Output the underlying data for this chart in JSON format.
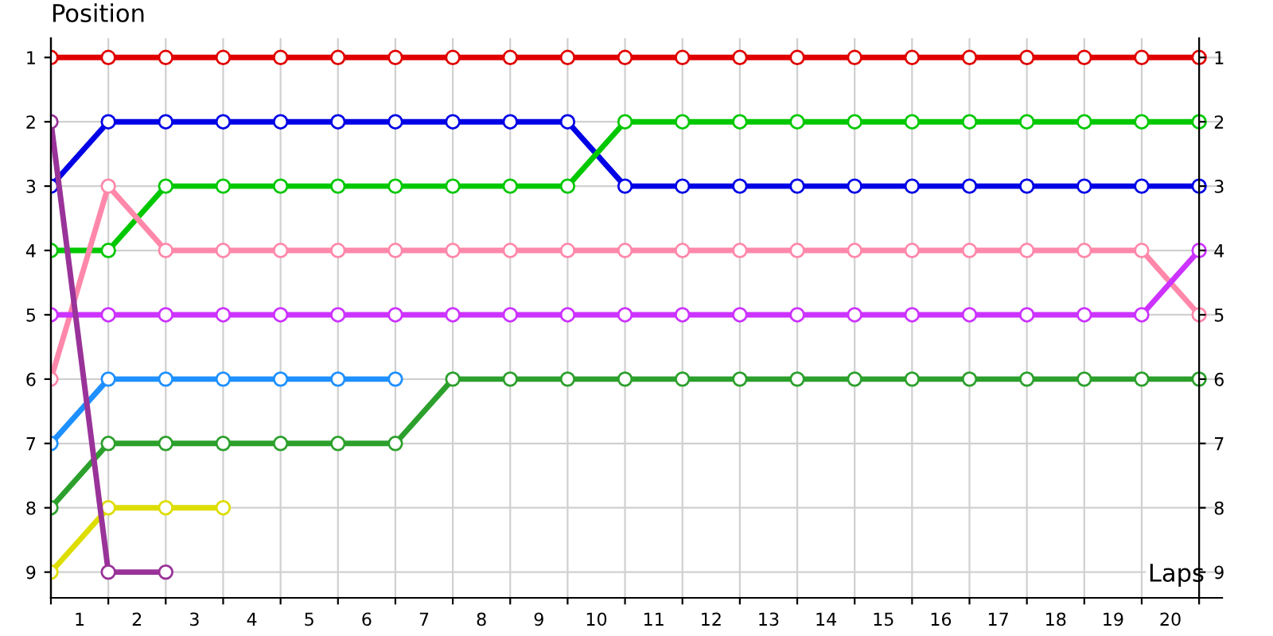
{
  "chart_data": {
    "type": "line",
    "ylabel": "Position",
    "xlabel": "Laps",
    "x": [
      0,
      1,
      2,
      3,
      4,
      5,
      6,
      7,
      8,
      9,
      10,
      11,
      12,
      13,
      14,
      15,
      16,
      17,
      18,
      19,
      20
    ],
    "series": [
      {
        "color": "#e00000",
        "values": [
          1,
          1,
          1,
          1,
          1,
          1,
          1,
          1,
          1,
          1,
          1,
          1,
          1,
          1,
          1,
          1,
          1,
          1,
          1,
          1,
          1
        ]
      },
      {
        "color": "#0000e6",
        "values": [
          3,
          2,
          2,
          2,
          2,
          2,
          2,
          2,
          2,
          2,
          3,
          3,
          3,
          3,
          3,
          3,
          3,
          3,
          3,
          3,
          3
        ]
      },
      {
        "color": "#00c800",
        "values": [
          4,
          4,
          3,
          3,
          3,
          3,
          3,
          3,
          3,
          3,
          2,
          2,
          2,
          2,
          2,
          2,
          2,
          2,
          2,
          2,
          2
        ]
      },
      {
        "color": "#ff88aa",
        "values": [
          6,
          3,
          4,
          4,
          4,
          4,
          4,
          4,
          4,
          4,
          4,
          4,
          4,
          4,
          4,
          4,
          4,
          4,
          4,
          4,
          5
        ]
      },
      {
        "color": "#cc33ff",
        "values": [
          5,
          5,
          5,
          5,
          5,
          5,
          5,
          5,
          5,
          5,
          5,
          5,
          5,
          5,
          5,
          5,
          5,
          5,
          5,
          5,
          4
        ]
      },
      {
        "color": "#1e90ff",
        "values": [
          7,
          6,
          6,
          6,
          6,
          6,
          6,
          null,
          null,
          null,
          null,
          null,
          null,
          null,
          null,
          null,
          null,
          null,
          null,
          null,
          null
        ]
      },
      {
        "color": "#2ca02c",
        "values": [
          8,
          7,
          7,
          7,
          7,
          7,
          7,
          6,
          6,
          6,
          6,
          6,
          6,
          6,
          6,
          6,
          6,
          6,
          6,
          6,
          6
        ]
      },
      {
        "color": "#dddd00",
        "values": [
          9,
          8,
          8,
          8,
          null,
          null,
          null,
          null,
          null,
          null,
          null,
          null,
          null,
          null,
          null,
          null,
          null,
          null,
          null,
          null,
          null
        ]
      },
      {
        "color": "#993399",
        "values": [
          2,
          9,
          9,
          null,
          null,
          null,
          null,
          null,
          null,
          null,
          null,
          null,
          null,
          null,
          null,
          null,
          null,
          null,
          null,
          null,
          null
        ]
      }
    ],
    "xlim": [
      0,
      20.4
    ],
    "ylim": [
      9.4,
      0.7
    ],
    "y2lim": [
      9.4,
      0.7
    ],
    "xticks": [
      {
        "value": 0,
        "label": null
      },
      {
        "value": 0.5,
        "label": "1"
      },
      {
        "value": 1,
        "label": null
      },
      {
        "value": 1.5,
        "label": "2"
      },
      {
        "value": 2,
        "label": null
      },
      {
        "value": 2.5,
        "label": "3"
      },
      {
        "value": 3,
        "label": null
      },
      {
        "value": 3.5,
        "label": "4"
      },
      {
        "value": 4,
        "label": null
      },
      {
        "value": 4.5,
        "label": "5"
      },
      {
        "value": 5,
        "label": null
      },
      {
        "value": 5.5,
        "label": "6"
      },
      {
        "value": 6,
        "label": null
      },
      {
        "value": 6.5,
        "label": "7"
      },
      {
        "value": 7,
        "label": null
      },
      {
        "value": 7.5,
        "label": "8"
      },
      {
        "value": 8,
        "label": null
      },
      {
        "value": 8.5,
        "label": "9"
      },
      {
        "value": 9,
        "label": null
      },
      {
        "value": 9.5,
        "label": "10"
      },
      {
        "value": 10,
        "label": null
      },
      {
        "value": 10.5,
        "label": "11"
      },
      {
        "value": 11,
        "label": null
      },
      {
        "value": 11.5,
        "label": "12"
      },
      {
        "value": 12,
        "label": null
      },
      {
        "value": 12.5,
        "label": "13"
      },
      {
        "value": 13,
        "label": null
      },
      {
        "value": 13.5,
        "label": "14"
      },
      {
        "value": 14,
        "label": null
      },
      {
        "value": 14.5,
        "label": "15"
      },
      {
        "value": 15,
        "label": null
      },
      {
        "value": 15.5,
        "label": "16"
      },
      {
        "value": 16,
        "label": null
      },
      {
        "value": 16.5,
        "label": "17"
      },
      {
        "value": 17,
        "label": null
      },
      {
        "value": 17.5,
        "label": "18"
      },
      {
        "value": 18,
        "label": null
      },
      {
        "value": 18.5,
        "label": "19"
      },
      {
        "value": 19,
        "label": null
      },
      {
        "value": 19.5,
        "label": "20"
      },
      {
        "value": 20,
        "label": null
      }
    ],
    "yticks": [
      1,
      2,
      3,
      4,
      5,
      6,
      7,
      8,
      9
    ],
    "y2ticks": [
      1,
      2,
      3,
      4,
      5,
      6,
      7,
      8,
      9
    ],
    "grid": true,
    "marker": "circle",
    "line_style": "solid",
    "legend": false
  }
}
